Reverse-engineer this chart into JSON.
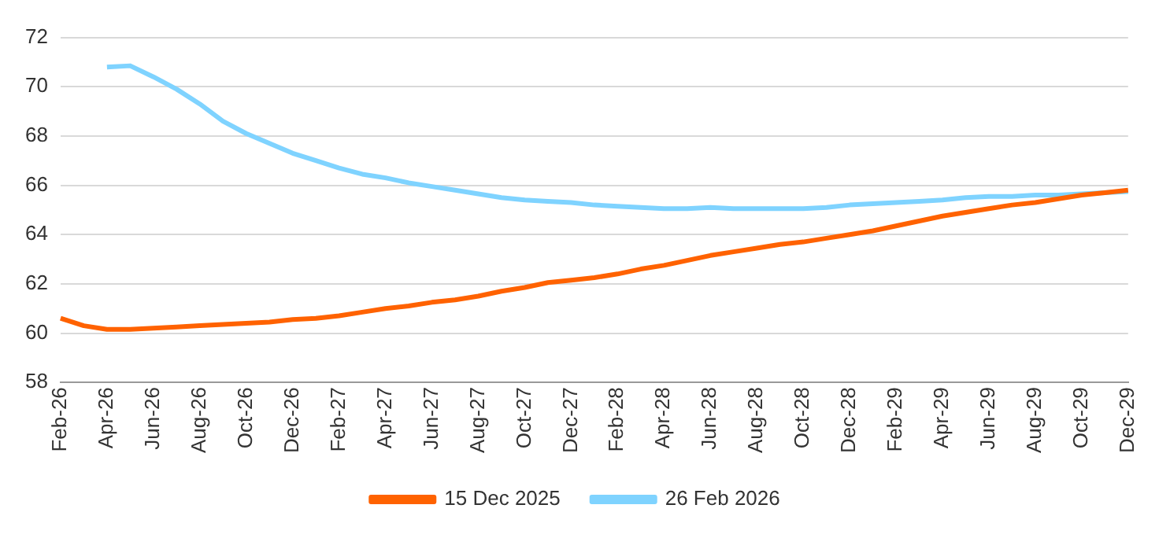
{
  "chart_data": {
    "type": "line",
    "categories": [
      "Feb-26",
      null,
      "Apr-26",
      null,
      "Jun-26",
      null,
      "Aug-26",
      null,
      "Oct-26",
      null,
      "Dec-26",
      null,
      "Feb-27",
      null,
      "Apr-27",
      null,
      "Jun-27",
      null,
      "Aug-27",
      null,
      "Oct-27",
      null,
      "Dec-27",
      null,
      "Feb-28",
      null,
      "Apr-28",
      null,
      "Jun-28",
      null,
      "Aug-28",
      null,
      "Oct-28",
      null,
      "Dec-28",
      null,
      "Feb-29",
      null,
      "Apr-29",
      null,
      "Jun-29",
      null,
      "Aug-29",
      null,
      "Oct-29",
      null,
      "Dec-29"
    ],
    "series": [
      {
        "name": "15 Dec 2025",
        "color": "#ff6200",
        "values": [
          60.6,
          60.3,
          60.15,
          60.15,
          60.2,
          60.25,
          60.3,
          60.35,
          60.4,
          60.45,
          60.55,
          60.6,
          60.7,
          60.85,
          61.0,
          61.1,
          61.25,
          61.35,
          61.5,
          61.7,
          61.85,
          62.05,
          62.15,
          62.25,
          62.4,
          62.6,
          62.75,
          62.95,
          63.15,
          63.3,
          63.45,
          63.6,
          63.7,
          63.85,
          64.0,
          64.15,
          64.35,
          64.55,
          64.75,
          64.9,
          65.05,
          65.2,
          65.3,
          65.45,
          65.6,
          65.7,
          65.8
        ]
      },
      {
        "name": "26 Feb 2026",
        "color": "#7fd3ff",
        "values": [
          null,
          null,
          70.8,
          70.85,
          70.4,
          69.9,
          69.3,
          68.6,
          68.1,
          67.7,
          67.3,
          67.0,
          66.7,
          66.45,
          66.3,
          66.1,
          65.95,
          65.8,
          65.65,
          65.5,
          65.4,
          65.35,
          65.3,
          65.2,
          65.15,
          65.1,
          65.05,
          65.05,
          65.1,
          65.05,
          65.05,
          65.05,
          65.05,
          65.1,
          65.2,
          65.25,
          65.3,
          65.35,
          65.4,
          65.5,
          65.55,
          65.55,
          65.6,
          65.6,
          65.65,
          65.7,
          65.75
        ]
      }
    ],
    "ylim": [
      58,
      72
    ],
    "yticks": [
      58,
      60,
      62,
      64,
      66,
      68,
      70,
      72
    ],
    "grid": "y",
    "legend": "bottom",
    "marker": "none",
    "line_style": "solid"
  }
}
